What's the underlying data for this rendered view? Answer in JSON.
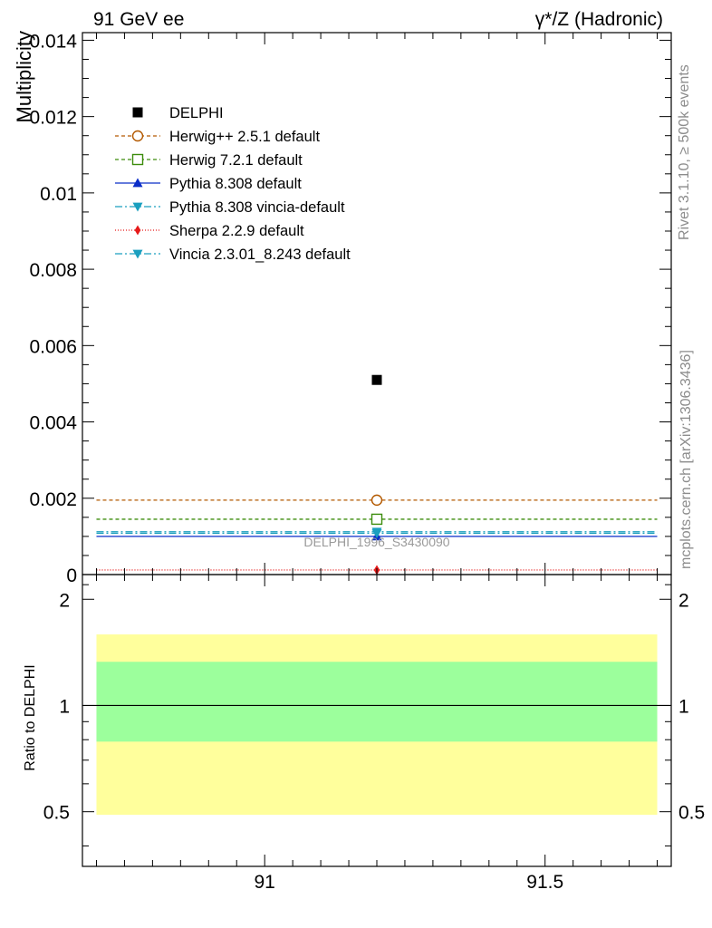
{
  "chart_data": [
    {
      "type": "scatter",
      "title_left": "91 GeV ee",
      "title_right": "γ*/Z (Hadronic)",
      "ylabel": "Multiplicity",
      "xlim": [
        90.675,
        91.725
      ],
      "ylim": [
        0,
        0.0142
      ],
      "y_ticks": [
        {
          "value": 0,
          "label": "0"
        },
        {
          "value": 0.002,
          "label": "0.002"
        },
        {
          "value": 0.004,
          "label": "0.004"
        },
        {
          "value": 0.006,
          "label": "0.006"
        },
        {
          "value": 0.008,
          "label": "0.008"
        },
        {
          "value": 0.01,
          "label": "0.01"
        },
        {
          "value": 0.012,
          "label": "0.012"
        },
        {
          "value": 0.014,
          "label": "0.014"
        }
      ],
      "bin": [
        90.7,
        91.7
      ],
      "watermark": "DELPHI_1996_S3430090",
      "data_point": {
        "name": "DELPHI",
        "x": 91.2,
        "y": 0.0051,
        "color": "#000000"
      },
      "series": [
        {
          "name": "Herwig++ 2.5.1 default",
          "value": 0.00195,
          "color": "#b35900",
          "dash": "4,3",
          "marker": "circle-open"
        },
        {
          "name": "Herwig 7.2.1 default",
          "value": 0.00145,
          "color": "#3c8c0c",
          "dash": "4,3",
          "marker": "square-open"
        },
        {
          "name": "Pythia 8.308 default",
          "value": 0.001,
          "color": "#0a2dc8",
          "dash": "",
          "marker": "triangle-up"
        },
        {
          "name": "Pythia 8.308 vincia-default",
          "value": 0.00108,
          "color": "#1a9fbf",
          "dash": "8,3,2,3",
          "marker": "triangle-down"
        },
        {
          "name": "Sherpa 2.2.9 default",
          "value": 0.00012,
          "color": "#e61a1a",
          "dash": "1,2",
          "marker": "diamond"
        },
        {
          "name": "Vincia 2.3.01_8.243 default",
          "value": 0.00112,
          "color": "#1a9fbf",
          "dash": "8,3,2,3",
          "marker": "triangle-down"
        }
      ]
    },
    {
      "type": "band",
      "ylabel": "Ratio to DELPHI",
      "ylim": [
        0.35,
        2.35
      ],
      "y_ticks": [
        {
          "value": 0.5,
          "label": "0.5"
        },
        {
          "value": 1,
          "label": "1"
        },
        {
          "value": 2,
          "label": "2"
        }
      ],
      "x_ticks": [
        {
          "value": 91,
          "label": "91"
        },
        {
          "value": 91.5,
          "label": "91.5"
        }
      ],
      "reference": 1,
      "band_stat": [
        0.79,
        1.33
      ],
      "band_total": [
        0.49,
        1.59
      ],
      "band_stat_color": "#9cff9c",
      "band_total_color": "#ffff9c"
    }
  ],
  "side_texts": {
    "rivet": "Rivet 3.1.10, ≥ 500k events",
    "mcplots": "mcplots.cern.ch [arXiv:1306.3436]"
  }
}
